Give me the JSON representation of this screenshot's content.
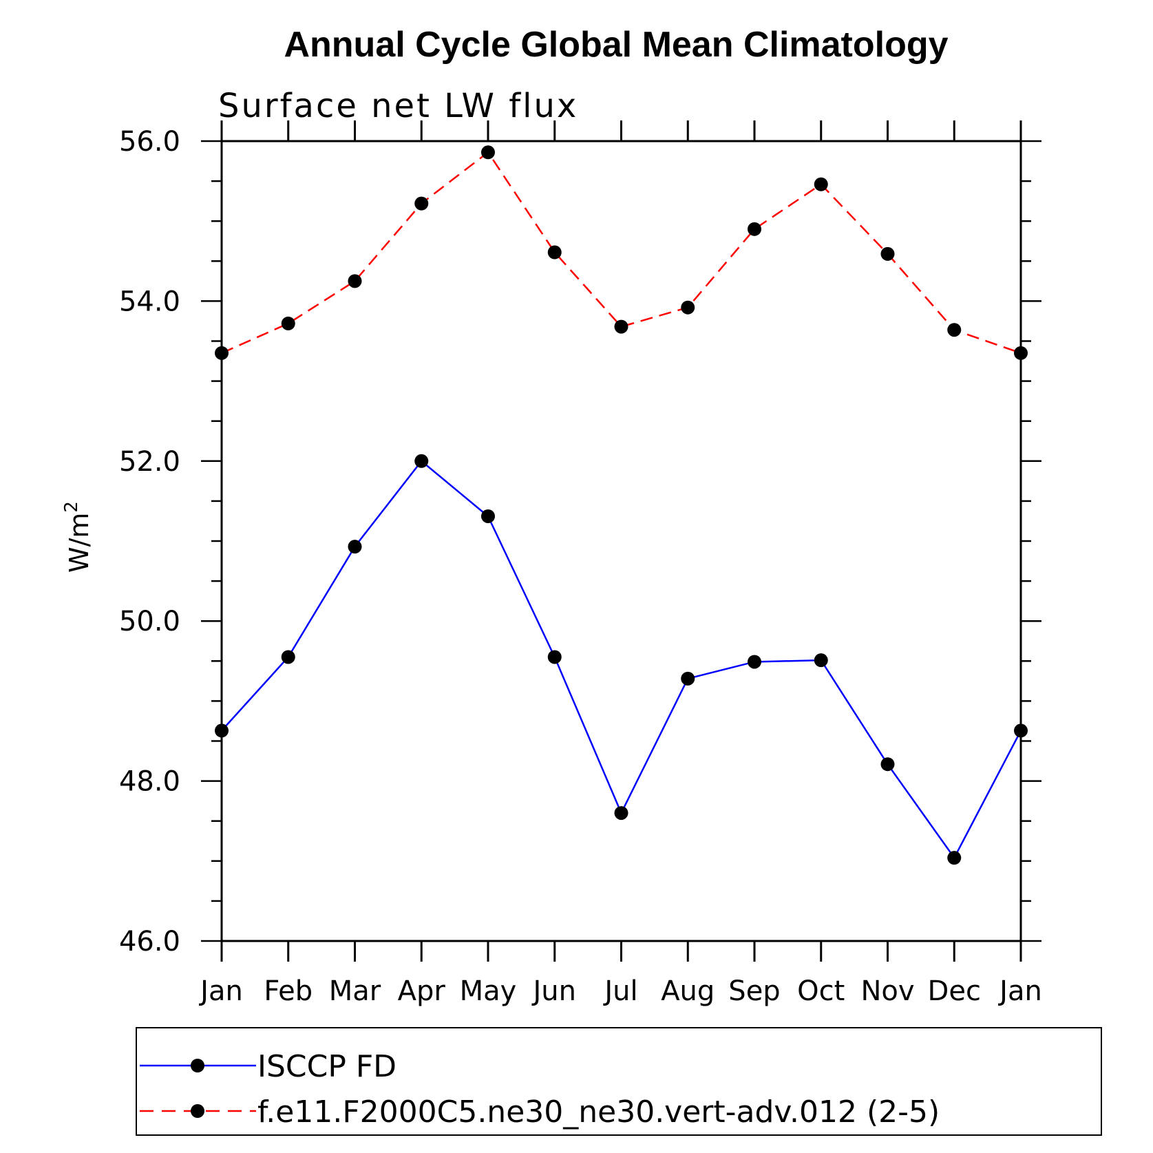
{
  "chart_data": {
    "type": "line",
    "title": "Annual Cycle Global Mean Climatology",
    "subtitle": "Surface net LW flux",
    "ylabel": "W/m",
    "ylabel_superscript": "2",
    "xlabel": "",
    "categories": [
      "Jan",
      "Feb",
      "Mar",
      "Apr",
      "May",
      "Jun",
      "Jul",
      "Aug",
      "Sep",
      "Oct",
      "Nov",
      "Dec",
      "Jan"
    ],
    "ylim": [
      46.0,
      56.0
    ],
    "yticks": [
      "46.0",
      "48.0",
      "50.0",
      "52.0",
      "54.0",
      "56.0"
    ],
    "grid": false,
    "legend_position": "bottom",
    "series": [
      {
        "name": "ISCCP FD",
        "color": "#0000ff",
        "dash": "solid",
        "values": [
          48.63,
          49.55,
          50.93,
          52.0,
          51.31,
          49.55,
          47.6,
          49.28,
          49.49,
          49.51,
          48.21,
          47.04,
          48.63
        ]
      },
      {
        "name": "f.e11.F2000C5.ne30_ne30.vert-adv.012 (2-5)",
        "color": "#ff0000",
        "dash": "dashed",
        "values": [
          53.35,
          53.72,
          54.25,
          55.22,
          55.86,
          54.61,
          53.68,
          53.92,
          54.9,
          55.46,
          54.59,
          53.64,
          53.35
        ]
      }
    ]
  }
}
